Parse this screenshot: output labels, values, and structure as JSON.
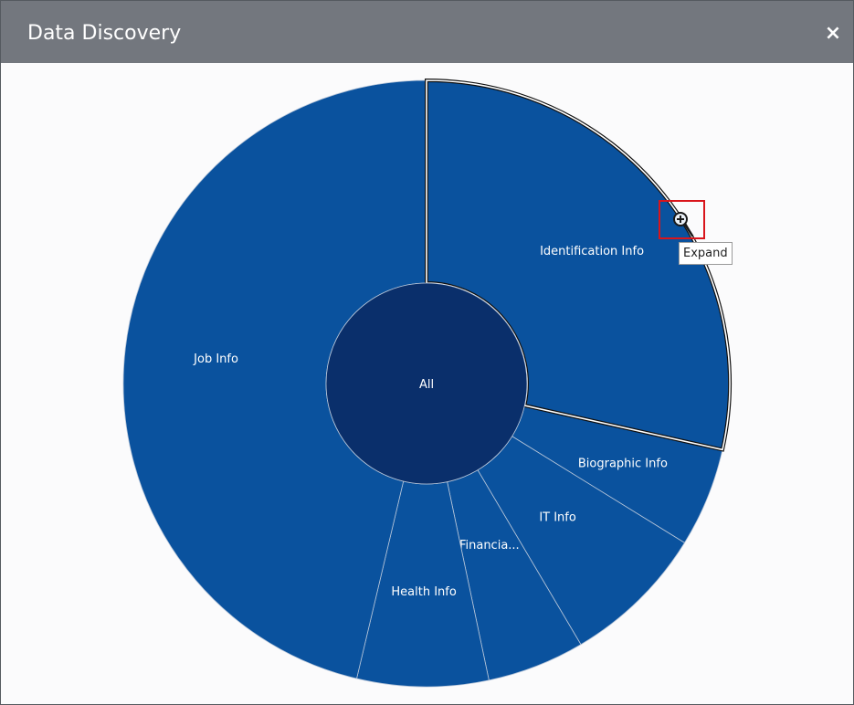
{
  "dialog": {
    "title": "Data Discovery",
    "close_label": "×"
  },
  "chart_data": {
    "type": "sunburst",
    "center": {
      "label": "All"
    },
    "segments": [
      {
        "label": "Identification Info",
        "value": 28.5,
        "selected": true
      },
      {
        "label": "Biographic Info",
        "value": 5.3
      },
      {
        "label": "IT Info",
        "value": 7.7
      },
      {
        "label": "Financia...",
        "value": 5.2
      },
      {
        "label": "Health Info",
        "value": 7.0
      },
      {
        "label": "Job Info",
        "value": 46.3
      }
    ],
    "colors": {
      "segment": "#0a529e",
      "center": "#0a2f6b",
      "divider": "#b9c7da",
      "selected_outline": "#ffffff"
    }
  },
  "tooltip": {
    "text": "Expand"
  },
  "expand_icon": {
    "name": "zoom-in-icon",
    "highlight_color": "#d9151b"
  }
}
